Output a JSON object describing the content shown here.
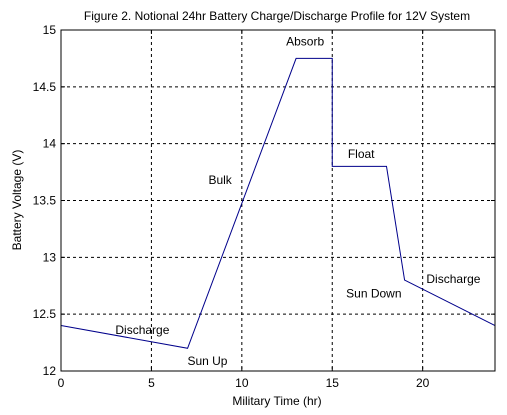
{
  "chart_data": {
    "type": "line",
    "title": "Figure 2. Notional 24hr Battery Charge/Discharge Profile for 12V System",
    "xlabel": "Military Time (hr)",
    "ylabel": "Battery Voltage (V)",
    "xlim": [
      0,
      24
    ],
    "ylim": [
      12,
      15
    ],
    "xticks": [
      0,
      5,
      10,
      15,
      20
    ],
    "xtick_labels": [
      "0",
      "5",
      "10",
      "15",
      "20"
    ],
    "yticks": [
      12,
      12.5,
      13,
      13.5,
      14,
      14.5,
      15
    ],
    "ytick_labels": [
      "12",
      "12.5",
      "13",
      "13.5",
      "14",
      "14.5",
      "15"
    ],
    "grid": true,
    "grid_style": "dashed",
    "series": [
      {
        "color": "#00008b",
        "x": [
          0,
          7,
          13,
          15,
          15,
          18,
          19,
          24
        ],
        "y": [
          12.4,
          12.2,
          14.75,
          14.75,
          13.8,
          13.8,
          12.8,
          12.4
        ]
      }
    ],
    "annotations": [
      {
        "text": "Absorb",
        "x": 13.5,
        "y": 14.9
      },
      {
        "text": "Float",
        "x": 16.6,
        "y": 13.91
      },
      {
        "text": "Bulk",
        "x": 8.8,
        "y": 13.68
      },
      {
        "text": "Discharge",
        "x": 4.5,
        "y": 12.36
      },
      {
        "text": "Sun Up",
        "x": 8.1,
        "y": 12.09
      },
      {
        "text": "Sun Down",
        "x": 17.3,
        "y": 12.68
      },
      {
        "text": "Discharge",
        "x": 21.7,
        "y": 12.81
      }
    ]
  }
}
